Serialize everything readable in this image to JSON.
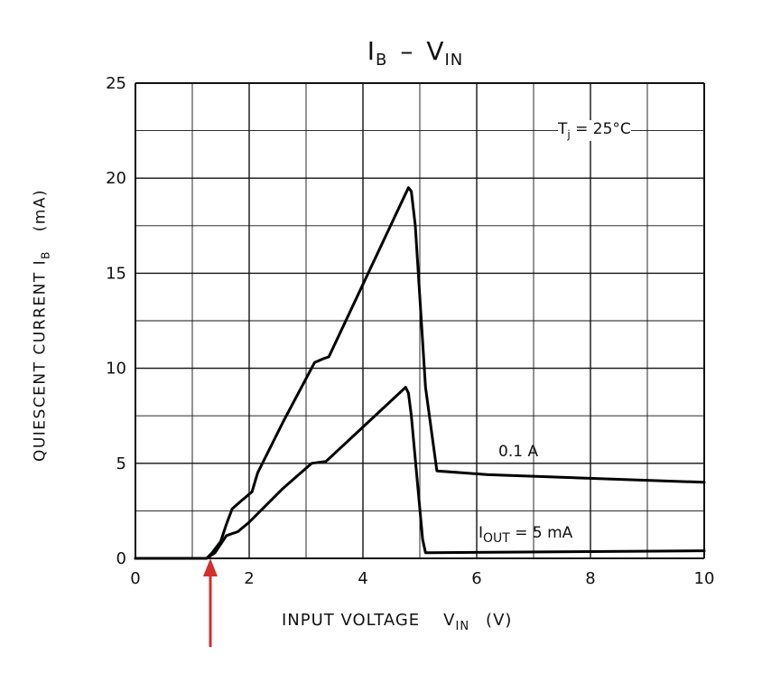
{
  "chart_data": {
    "type": "line",
    "title_main": "I",
    "title_main_sub": "B",
    "title_sep": "–",
    "title_right": "V",
    "title_right_sub": "IN",
    "ylabel_main": "QUIESCENT CURRENT   I",
    "ylabel_sub": "B",
    "ylabel_unit": "(mA)",
    "xlabel_main": "INPUT VOLTAGE",
    "xlabel_sym": "V",
    "xlabel_sub": "IN",
    "xlabel_unit": "(V)",
    "xlim": [
      0,
      10
    ],
    "ylim": [
      0,
      25
    ],
    "x_ticks": [
      "0",
      "2",
      "4",
      "6",
      "8",
      "10"
    ],
    "y_ticks": [
      "0",
      "5",
      "10",
      "15",
      "20",
      "25"
    ],
    "grid": true,
    "annotation_tj_main": "T",
    "annotation_tj_sub": "j",
    "annotation_tj_rest": " = 25°C",
    "series": [
      {
        "name": "0.1 A",
        "x": [
          0,
          1.25,
          1.35,
          1.5,
          1.6,
          1.7,
          1.85,
          2.05,
          2.15,
          2.6,
          3.15,
          3.3,
          3.4,
          4.8,
          4.85,
          4.92,
          5.1,
          5.3,
          6.2,
          10
        ],
        "y": [
          0,
          0,
          0.3,
          0.9,
          1.8,
          2.6,
          3.0,
          3.5,
          4.5,
          7.2,
          10.3,
          10.5,
          10.6,
          19.5,
          19.3,
          17.5,
          9.0,
          4.6,
          4.4,
          4.0
        ]
      },
      {
        "name_main": "I",
        "name_sub": "OUT",
        "name_rest": " = 5 mA",
        "x": [
          0,
          1.25,
          1.4,
          1.6,
          1.8,
          2.0,
          2.6,
          3.1,
          3.35,
          4.75,
          4.8,
          4.85,
          5.05,
          5.1,
          5.2,
          10
        ],
        "y": [
          0,
          0,
          0.3,
          1.2,
          1.4,
          1.9,
          3.7,
          5.0,
          5.1,
          9.0,
          8.7,
          7.5,
          1.0,
          0.3,
          0.3,
          0.4
        ]
      }
    ]
  }
}
